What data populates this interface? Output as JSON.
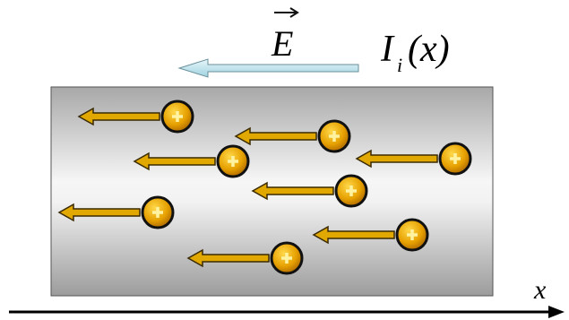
{
  "labels": {
    "field": "E",
    "current": "I",
    "current_subscript": "i",
    "current_argument": "(x)",
    "axis": "x"
  }
}
